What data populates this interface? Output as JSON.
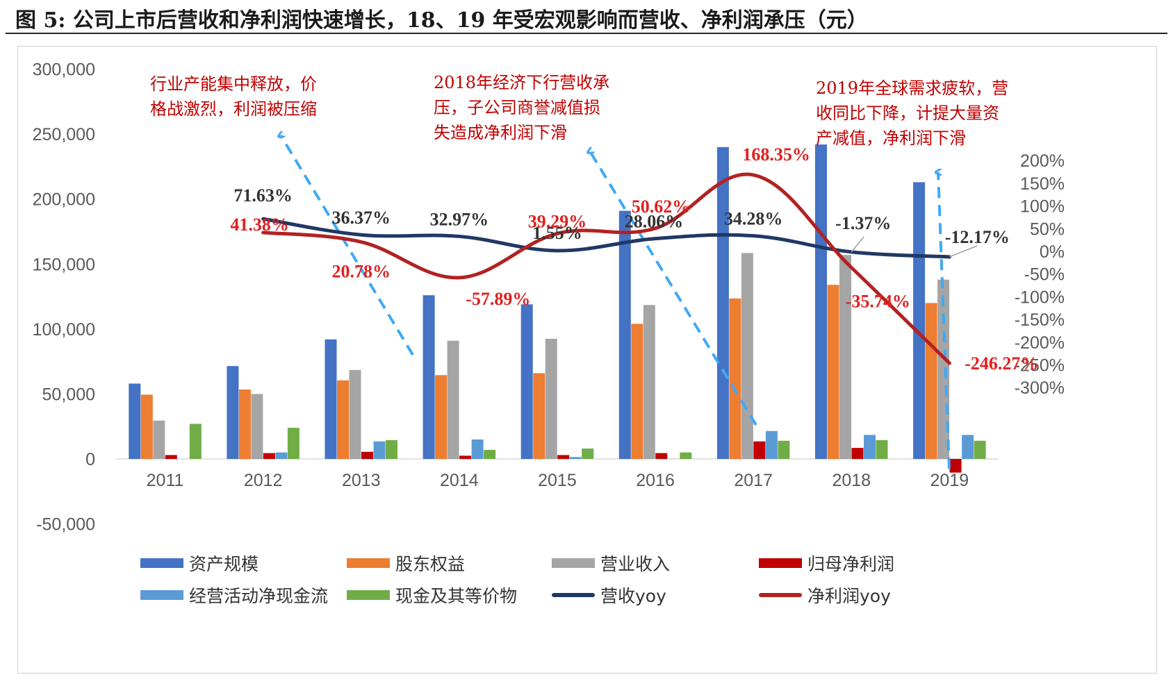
{
  "figure": {
    "title": "图 5:  公司上市后营收和净利润快速增长，18、19 年受宏观影响而营收、净利润承压（元）"
  },
  "colors": {
    "asset": "#4472C4",
    "equity": "#ED7D31",
    "revenue": "#A5A5A5",
    "net_profit": "#C00000",
    "ocf": "#5B9BD5",
    "cash": "#70AD47",
    "revenue_yoy": "#203864",
    "profit_yoy": "#B22222",
    "arrow": "#3FA9F5",
    "label_dark": "#333333",
    "label_red": "#E02020"
  },
  "annotations": [
    "行业产能集中释放，价\n格战激烈，利润被压缩",
    "2018年经济下行营收承\n压，子公司商誉减值损\n失造成净利润下滑",
    "2019年全球需求疲软，营\n收同比下降，计提大量资\n产减值，净利润下滑"
  ],
  "chart_data": {
    "type": "bar",
    "title": "",
    "categories": [
      "2011",
      "2012",
      "2013",
      "2014",
      "2015",
      "2016",
      "2017",
      "2018",
      "2019"
    ],
    "y_left": {
      "ylim": [
        -50000,
        300000
      ],
      "ticks": [
        "300,000",
        "250,000",
        "200,000",
        "150,000",
        "100,000",
        "50,000",
        "0",
        "-50,000"
      ]
    },
    "y_right": {
      "ylim": [
        -300,
        200
      ],
      "ticks": [
        "200%",
        "150%",
        "100%",
        "50%",
        "0%",
        "-50%",
        "-100%",
        "-150%",
        "-200%",
        "-250%",
        "-300%"
      ]
    },
    "bar_series": [
      {
        "name": "资产规模",
        "values": [
          58000,
          71500,
          92000,
          126000,
          119000,
          191000,
          240000,
          242000,
          213000
        ]
      },
      {
        "name": "股东权益",
        "values": [
          49500,
          53500,
          60500,
          64500,
          66000,
          104000,
          123500,
          134000,
          120000
        ]
      },
      {
        "name": "营业收入",
        "values": [
          29500,
          50000,
          68500,
          91000,
          92500,
          118500,
          158500,
          157000,
          138000
        ]
      },
      {
        "name": "归母净利润",
        "values": [
          3000,
          4500,
          5500,
          2500,
          3000,
          4500,
          13500,
          8500,
          -10500
        ]
      },
      {
        "name": "经营活动净现金流",
        "values": [
          0,
          5000,
          13500,
          15000,
          1500,
          0,
          21500,
          18500,
          18500
        ]
      },
      {
        "name": "现金及其等价物",
        "values": [
          27000,
          24000,
          14500,
          7000,
          8000,
          5000,
          14000,
          14500,
          14000
        ]
      }
    ],
    "line_series": [
      {
        "name": "营收yoy",
        "values": [
          null,
          71.63,
          36.37,
          32.97,
          1.55,
          28.06,
          34.28,
          -1.37,
          -12.17
        ],
        "labels": [
          "",
          "71.63%",
          "36.37%",
          "32.97%",
          "1.55%",
          "28.06%",
          "34.28%",
          "-1.37%",
          "-12.17%"
        ]
      },
      {
        "name": "净利润yoy",
        "values": [
          null,
          41.38,
          20.78,
          -57.89,
          39.29,
          50.62,
          168.35,
          -35.74,
          -246.27
        ],
        "labels": [
          "",
          "41.38%",
          "20.78%",
          "-57.89%",
          "39.29%",
          "50.62%",
          "168.35%",
          "-35.74%",
          "-246.27%"
        ]
      }
    ],
    "legend": [
      "资产规模",
      "股东权益",
      "营业收入",
      "归母净利润",
      "经营活动净现金流",
      "现金及其等价物",
      "营收yoy",
      "净利润yoy"
    ],
    "legend_position": "bottom",
    "grid": false
  }
}
